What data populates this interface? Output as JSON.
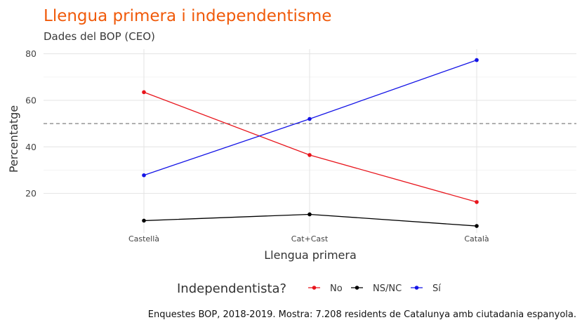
{
  "chart_data": {
    "type": "line",
    "title": "Llengua primera i independentisme",
    "subtitle": "Dades del BOP (CEO)",
    "xlabel": "Llengua primera",
    "ylabel": "Percentatge",
    "categories": [
      "Castellà",
      "Cat+Cast",
      "Català"
    ],
    "yticks": [
      20,
      40,
      60,
      80
    ],
    "ylim": [
      3,
      82
    ],
    "reference_line": 50,
    "grid": true,
    "legend_title": "Independentista?",
    "legend_position": "bottom",
    "series": [
      {
        "name": "No",
        "color": "#e8141b",
        "values": [
          63.5,
          36.5,
          16.3
        ]
      },
      {
        "name": "NS/NC",
        "color": "#000000",
        "values": [
          8.3,
          11.0,
          6.0
        ]
      },
      {
        "name": "Sí",
        "color": "#1414e6",
        "values": [
          27.8,
          52.0,
          77.3
        ]
      }
    ],
    "caption": "Enquestes BOP, 2018-2019. Mostra: 7.208 residents de Catalunya amb ciutadania espanyola."
  }
}
